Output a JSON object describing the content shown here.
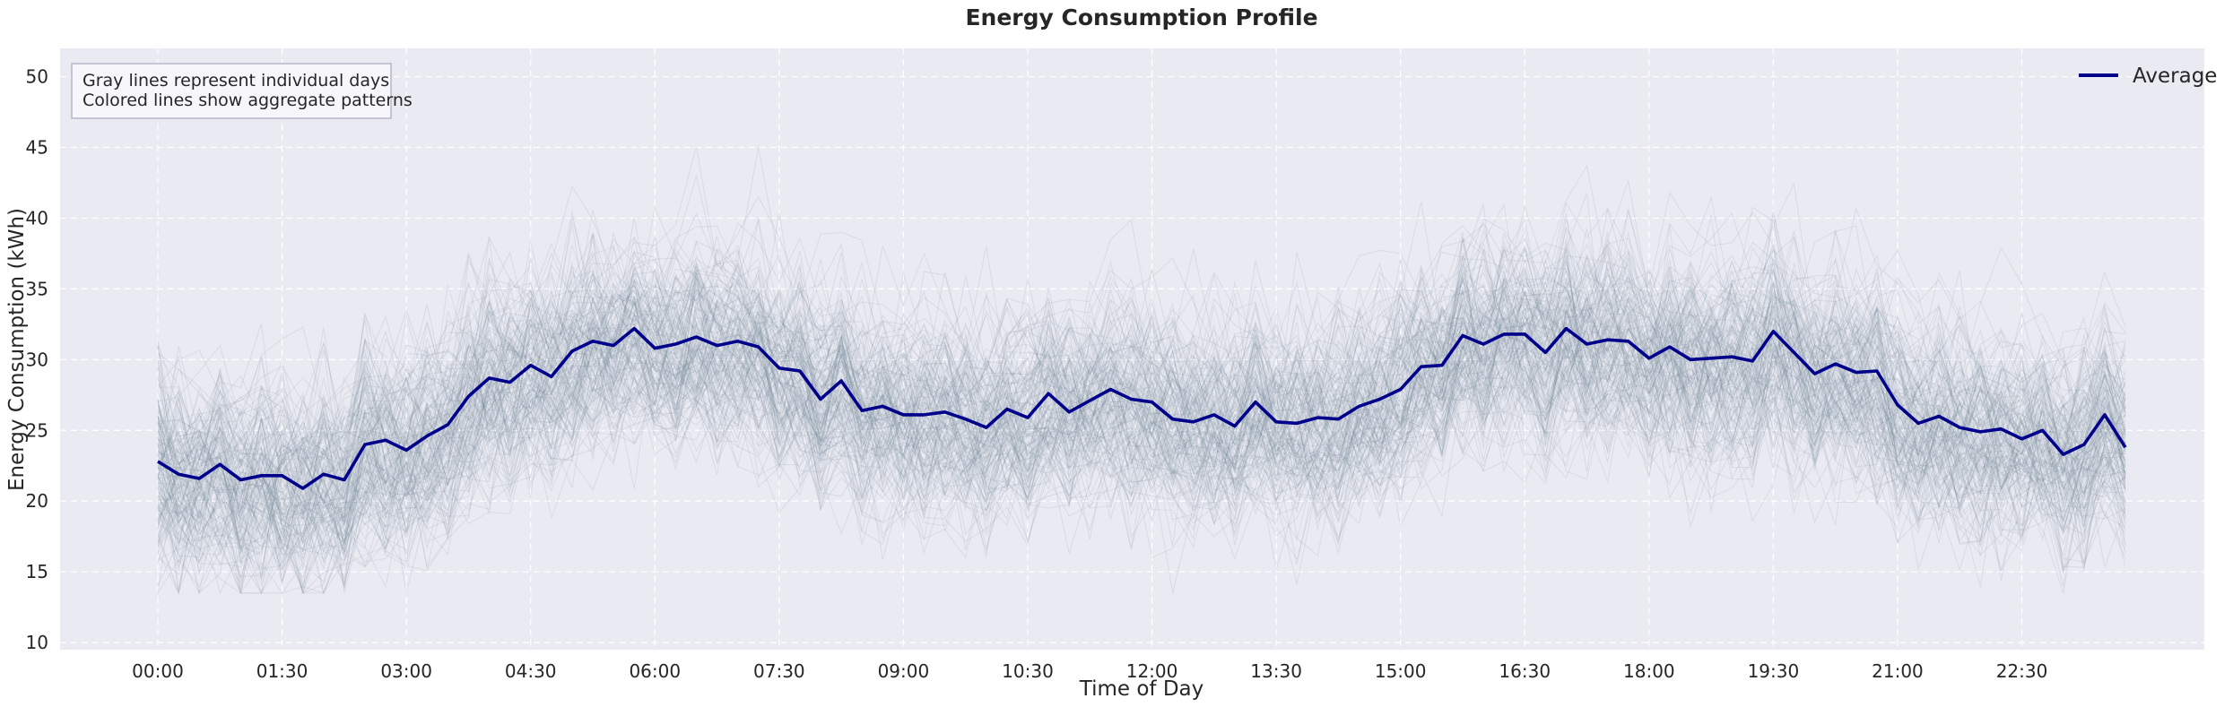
{
  "chart_data": {
    "type": "line",
    "title": "Energy Consumption Profile",
    "xlabel": "Time of Day",
    "ylabel": "Energy Consumption (kWh)",
    "ylim": [
      9.5,
      52
    ],
    "yticks": [
      10,
      15,
      20,
      25,
      30,
      35,
      40,
      45,
      50
    ],
    "interval_minutes": 15,
    "xtick_labels": [
      "00:00",
      "01:30",
      "03:00",
      "04:30",
      "06:00",
      "07:30",
      "09:00",
      "10:30",
      "12:00",
      "13:30",
      "15:00",
      "16:30",
      "18:00",
      "19:30",
      "21:00",
      "22:30"
    ],
    "grid": true,
    "legend": {
      "position": "top-right",
      "entries": [
        "Average"
      ]
    },
    "annotation": [
      "Gray lines represent individual days",
      "Colored lines show aggregate patterns"
    ],
    "colors": {
      "average": "#00008B",
      "individual": "#708090",
      "plot_background": "#EAEAF2",
      "grid": "#ffffff"
    },
    "series": [
      {
        "name": "Average",
        "values": [
          22.8,
          21.9,
          21.6,
          22.6,
          21.5,
          21.8,
          21.8,
          20.9,
          21.9,
          21.5,
          24.0,
          24.3,
          23.6,
          24.6,
          25.4,
          27.4,
          28.7,
          28.4,
          29.6,
          28.8,
          30.6,
          31.3,
          31.0,
          32.2,
          30.8,
          31.1,
          31.6,
          31.0,
          31.3,
          30.9,
          29.4,
          29.2,
          27.2,
          28.5,
          26.4,
          26.7,
          26.1,
          26.1,
          26.3,
          25.8,
          25.2,
          26.5,
          25.9,
          27.6,
          26.3,
          27.1,
          27.9,
          27.2,
          27.0,
          25.8,
          25.6,
          26.1,
          25.3,
          27.0,
          25.6,
          25.5,
          25.9,
          25.8,
          26.7,
          27.2,
          27.9,
          29.5,
          29.6,
          31.7,
          31.1,
          31.8,
          31.8,
          30.5,
          32.2,
          31.1,
          31.4,
          31.3,
          30.1,
          30.9,
          30.0,
          30.1,
          30.2,
          29.9,
          32.0,
          30.5,
          29.0,
          29.7,
          29.1,
          29.2,
          26.8,
          25.5,
          26.0,
          25.2,
          24.9,
          25.1,
          24.4,
          25.0,
          23.3,
          24.0,
          26.1,
          23.8
        ]
      }
    ]
  }
}
